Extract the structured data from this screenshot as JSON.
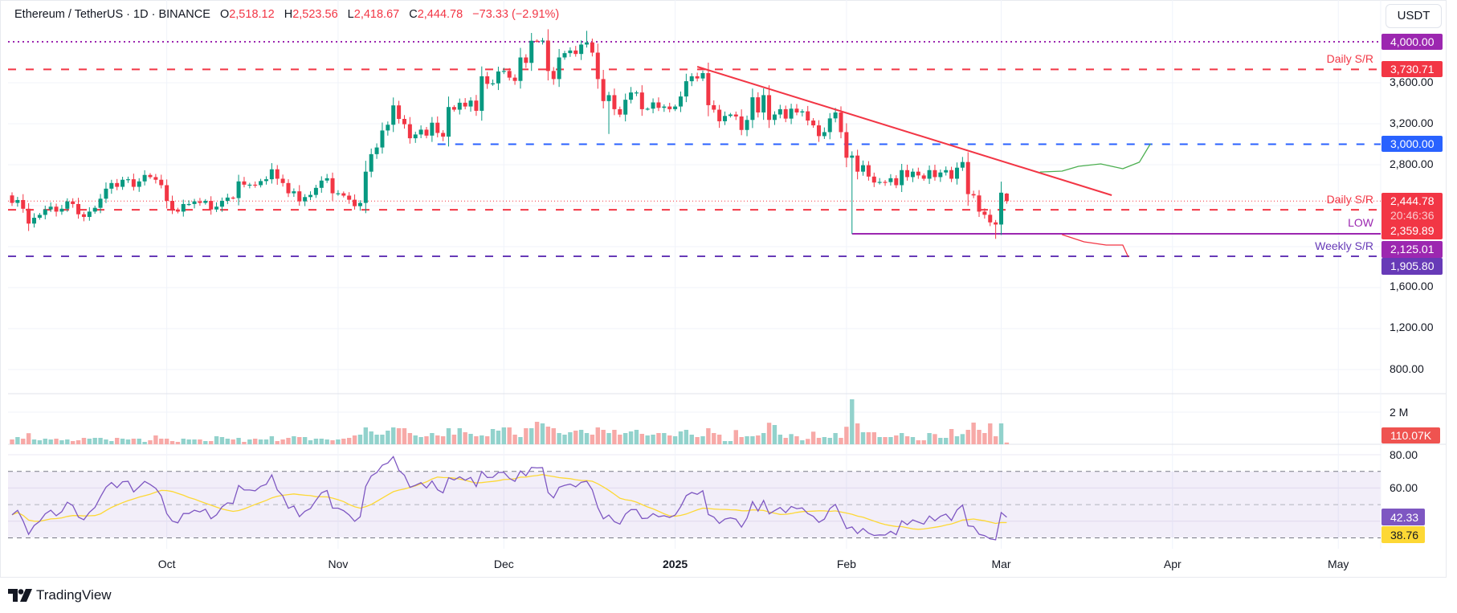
{
  "header": {
    "symbol": "Ethereum / TetherUS · 1D · BINANCE",
    "o_label": "O",
    "o": "2,518.12",
    "h_label": "H",
    "h": "2,523.56",
    "l_label": "L",
    "l": "2,418.67",
    "c_label": "C",
    "c": "2,444.78",
    "change": "−73.33 (−2.91%)"
  },
  "currency_button": "USDT",
  "price_axis": {
    "ticks": [
      "3,600.00",
      "3,200.00",
      "2,800.00",
      "1,600.00",
      "1,200.00",
      "800.00"
    ]
  },
  "price_labels": {
    "level_4000": "4,000.00",
    "daily_sr_upper": "3,730.71",
    "level_3000": "3,000.00",
    "current": "2,444.78",
    "countdown": "20:46:36",
    "daily_sr_lower": "2,359.89",
    "low": "2,125.01",
    "weekly_sr": "1,905.80"
  },
  "annotations": {
    "daily_sr_upper": "Daily S/R",
    "daily_sr_lower": "Daily S/R",
    "low": "LOW",
    "weekly_sr": "Weekly S/R"
  },
  "volume_axis": {
    "tick": "2 M",
    "last": "110.07K"
  },
  "rsi_axis": {
    "ticks": [
      "80.00",
      "60.00"
    ],
    "rsi": "42.33",
    "rsi_ma": "38.76"
  },
  "time_axis": [
    "Oct",
    "Nov",
    "Dec",
    "2025",
    "Feb",
    "Mar",
    "Apr",
    "May"
  ],
  "logo": "TradingView",
  "colors": {
    "up": "#089981",
    "down": "#f23645",
    "up_volume": "#92d2cc",
    "down_volume": "#f7a9a7",
    "level_4000": "#9c27b0",
    "daily_sr": "#f23645",
    "level_3000": "#2962ff",
    "low": "#9c27b0",
    "weekly_sr": "#673ab7",
    "rsi": "#7e57c2",
    "rsi_ma": "#fdd835",
    "projection_up": "#4caf50",
    "projection_down": "#f23645",
    "trendline": "#f23645"
  },
  "chart_data": {
    "type": "candlestick",
    "interval": "1D",
    "start_date": "2024-09-03",
    "ylim": [
      600,
      4250
    ],
    "first_open": 2500,
    "closes": [
      2427,
      2455,
      2370,
      2225,
      2282,
      2310,
      2363,
      2390,
      2342,
      2370,
      2442,
      2416,
      2316,
      2290,
      2342,
      2379,
      2468,
      2566,
      2621,
      2584,
      2653,
      2658,
      2584,
      2637,
      2700,
      2679,
      2653,
      2600,
      2447,
      2363,
      2342,
      2416,
      2416,
      2442,
      2427,
      2447,
      2363,
      2390,
      2447,
      2479,
      2474,
      2637,
      2605,
      2605,
      2600,
      2640,
      2658,
      2755,
      2663,
      2621,
      2521,
      2540,
      2442,
      2484,
      2505,
      2574,
      2645,
      2668,
      2521,
      2521,
      2498,
      2458,
      2395,
      2427,
      2732,
      2903,
      2968,
      3134,
      3190,
      3379,
      3247,
      3195,
      3058,
      3095,
      3142,
      3084,
      3210,
      3110,
      3074,
      3363,
      3337,
      3405,
      3368,
      3426,
      3326,
      3663,
      3589,
      3594,
      3710,
      3715,
      3650,
      3618,
      3847,
      3794,
      4010,
      4005,
      4012,
      3715,
      3636,
      3847,
      3889,
      3915,
      3881,
      3973,
      3994,
      3894,
      3636,
      3421,
      3479,
      3342,
      3289,
      3434,
      3505,
      3505,
      3342,
      3347,
      3408,
      3355,
      3368,
      3342,
      3368,
      3466,
      3615,
      3663,
      3642,
      3694,
      3381,
      3337,
      3224,
      3276,
      3290,
      3271,
      3139,
      3237,
      3458,
      3310,
      3479,
      3237,
      3290,
      3342,
      3250,
      3347,
      3310,
      3321,
      3231,
      3184,
      3079,
      3118,
      3252,
      3310,
      3118,
      2868,
      2889,
      2732,
      2795,
      2684,
      2626,
      2632,
      2630,
      2668,
      2600,
      2747,
      2679,
      2732,
      2695,
      2663,
      2747,
      2679,
      2724,
      2747,
      2663,
      2771,
      2826,
      2513,
      2500,
      2342,
      2311,
      2237,
      2216,
      2527,
      2444.78
    ],
    "overrides": [
      {
        "index": 94,
        "high": 4086
      },
      {
        "index": 104,
        "high": 4107
      },
      {
        "index": 108,
        "low": 3100
      },
      {
        "index": 152,
        "low": 2125.01
      },
      {
        "index": 178,
        "low": 2076
      },
      {
        "index": 180,
        "open": 2518.12,
        "high": 2523.56,
        "low": 2418.67
      }
    ],
    "volume_k": [
      300,
      450,
      350,
      690,
      300,
      250,
      350,
      300,
      350,
      250,
      300,
      200,
      250,
      400,
      350,
      400,
      400,
      300,
      200,
      400,
      350,
      300,
      350,
      350,
      150,
      250,
      550,
      350,
      350,
      200,
      150,
      350,
      300,
      300,
      300,
      200,
      200,
      500,
      450,
      350,
      300,
      400,
      150,
      300,
      350,
      300,
      300,
      500,
      200,
      300,
      400,
      500,
      450,
      450,
      250,
      350,
      350,
      300,
      250,
      300,
      350,
      400,
      550,
      600,
      1050,
      800,
      600,
      600,
      850,
      1050,
      1000,
      1000,
      700,
      550,
      450,
      500,
      700,
      550,
      500,
      1000,
      600,
      1000,
      750,
      650,
      500,
      550,
      500,
      950,
      850,
      1050,
      1050,
      600,
      450,
      1000,
      1000,
      1400,
      1300,
      1100,
      1000,
      700,
      600,
      750,
      850,
      900,
      700,
      600,
      1050,
      900,
      700,
      900,
      600,
      700,
      800,
      900,
      650,
      550,
      600,
      700,
      700,
      550,
      500,
      800,
      900,
      600,
      450,
      500,
      1000,
      700,
      600,
      200,
      200,
      885,
      450,
      500,
      500,
      550,
      700,
      1340,
      1200,
      600,
      400,
      635,
      500,
      250,
      335,
      785,
      400,
      450,
      400,
      700,
      400,
      1090,
      2800,
      1300,
      750,
      750,
      750,
      450,
      450,
      450,
      550,
      700,
      500,
      450,
      250,
      250,
      700,
      635,
      400,
      400,
      950,
      500,
      635,
      900,
      1350,
      900,
      700,
      1300,
      500,
      1300,
      110.07
    ],
    "levels": {
      "level_4000": 4000,
      "daily_sr_upper": 3730.71,
      "level_3000": 3000,
      "current": 2444.78,
      "daily_sr_lower": 2359.89,
      "low": 2125.01,
      "weekly_sr": 1905.8
    },
    "level_3000_from": "2024-11-19",
    "low_from": "2025-02-02",
    "trendline": [
      [
        "2025-01-05",
        3757
      ],
      [
        "2025-03-21",
        2502
      ]
    ],
    "projection_up": [
      [
        "2025-03-08",
        2729
      ],
      [
        "2025-03-12",
        2737
      ],
      [
        "2025-03-15",
        2784
      ],
      [
        "2025-03-19",
        2808
      ],
      [
        "2025-03-23",
        2761
      ],
      [
        "2025-03-26",
        2824
      ],
      [
        "2025-03-28",
        3004
      ]
    ],
    "projection_down": [
      [
        "2025-03-12",
        2118
      ],
      [
        "2025-03-16",
        2047
      ],
      [
        "2025-03-20",
        2016
      ],
      [
        "2025-03-23",
        2016
      ],
      [
        "2025-03-24",
        1898
      ]
    ],
    "month_starts": [
      "2024-10-01",
      "2024-11-01",
      "2024-12-01",
      "2025-01-01",
      "2025-02-01",
      "2025-03-01",
      "2025-04-01",
      "2025-05-01"
    ],
    "rsi": {
      "period": 14,
      "ma_period": 14,
      "bands": [
        70,
        50,
        30
      ],
      "ylim": [
        20,
        80
      ]
    },
    "volume_axis_max_label": "2 M"
  }
}
